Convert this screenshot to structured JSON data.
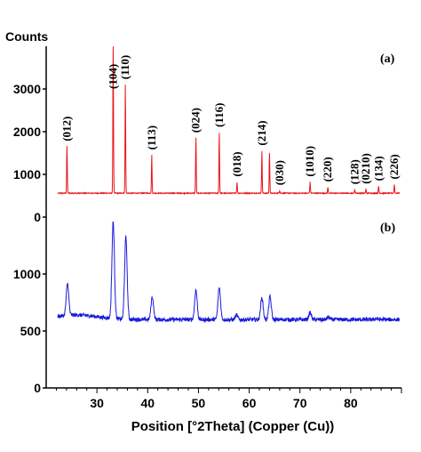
{
  "chart_data": [
    {
      "type": "line",
      "panel_label": "(a)",
      "ylabel": "Counts",
      "ylim": [
        0,
        4000
      ],
      "yticks": [
        0,
        1000,
        2000,
        3000
      ],
      "xlim": [
        20,
        90
      ],
      "color": "#e8141b",
      "baseline": 560,
      "peaks": [
        {
          "x": 24.1,
          "y": 1650,
          "label": "(012)"
        },
        {
          "x": 33.2,
          "y": 4000,
          "label": "(104)"
        },
        {
          "x": 35.6,
          "y": 3100,
          "label": "(110)"
        },
        {
          "x": 40.8,
          "y": 1450,
          "label": "(113)"
        },
        {
          "x": 49.5,
          "y": 1850,
          "label": "(024)"
        },
        {
          "x": 54.1,
          "y": 1980,
          "label": "(116)"
        },
        {
          "x": 57.6,
          "y": 820,
          "label": "(018)"
        },
        {
          "x": 62.5,
          "y": 1550,
          "label": "(214)"
        },
        {
          "x": 64.0,
          "y": 1500,
          "label": ""
        },
        {
          "x": 66.0,
          "y": 620,
          "label": "(030)"
        },
        {
          "x": 72.0,
          "y": 820,
          "label": "(1010)"
        },
        {
          "x": 75.5,
          "y": 700,
          "label": "(220)"
        },
        {
          "x": 80.8,
          "y": 640,
          "label": "(128)"
        },
        {
          "x": 83.0,
          "y": 650,
          "label": "(0210)"
        },
        {
          "x": 85.5,
          "y": 720,
          "label": "(134)"
        },
        {
          "x": 88.6,
          "y": 760,
          "label": "(226)"
        }
      ]
    },
    {
      "type": "line",
      "panel_label": "(b)",
      "ylim": [
        0,
        1500
      ],
      "yticks": [
        0,
        500,
        1000
      ],
      "xlim": [
        20,
        90
      ],
      "xticks": [
        30,
        40,
        50,
        60,
        70,
        80
      ],
      "xlabel": "Position [°2Theta] (Copper (Cu))",
      "color": "#1a1adc",
      "baseline": 600,
      "peaks": [
        {
          "x": 24.2,
          "y": 880
        },
        {
          "x": 33.2,
          "y": 1450
        },
        {
          "x": 35.7,
          "y": 1320
        },
        {
          "x": 40.9,
          "y": 800
        },
        {
          "x": 49.5,
          "y": 860
        },
        {
          "x": 54.1,
          "y": 880
        },
        {
          "x": 57.5,
          "y": 640
        },
        {
          "x": 62.5,
          "y": 790
        },
        {
          "x": 64.1,
          "y": 800
        },
        {
          "x": 72.0,
          "y": 660
        },
        {
          "x": 75.6,
          "y": 620
        },
        {
          "x": 85.0,
          "y": 610
        }
      ]
    }
  ]
}
